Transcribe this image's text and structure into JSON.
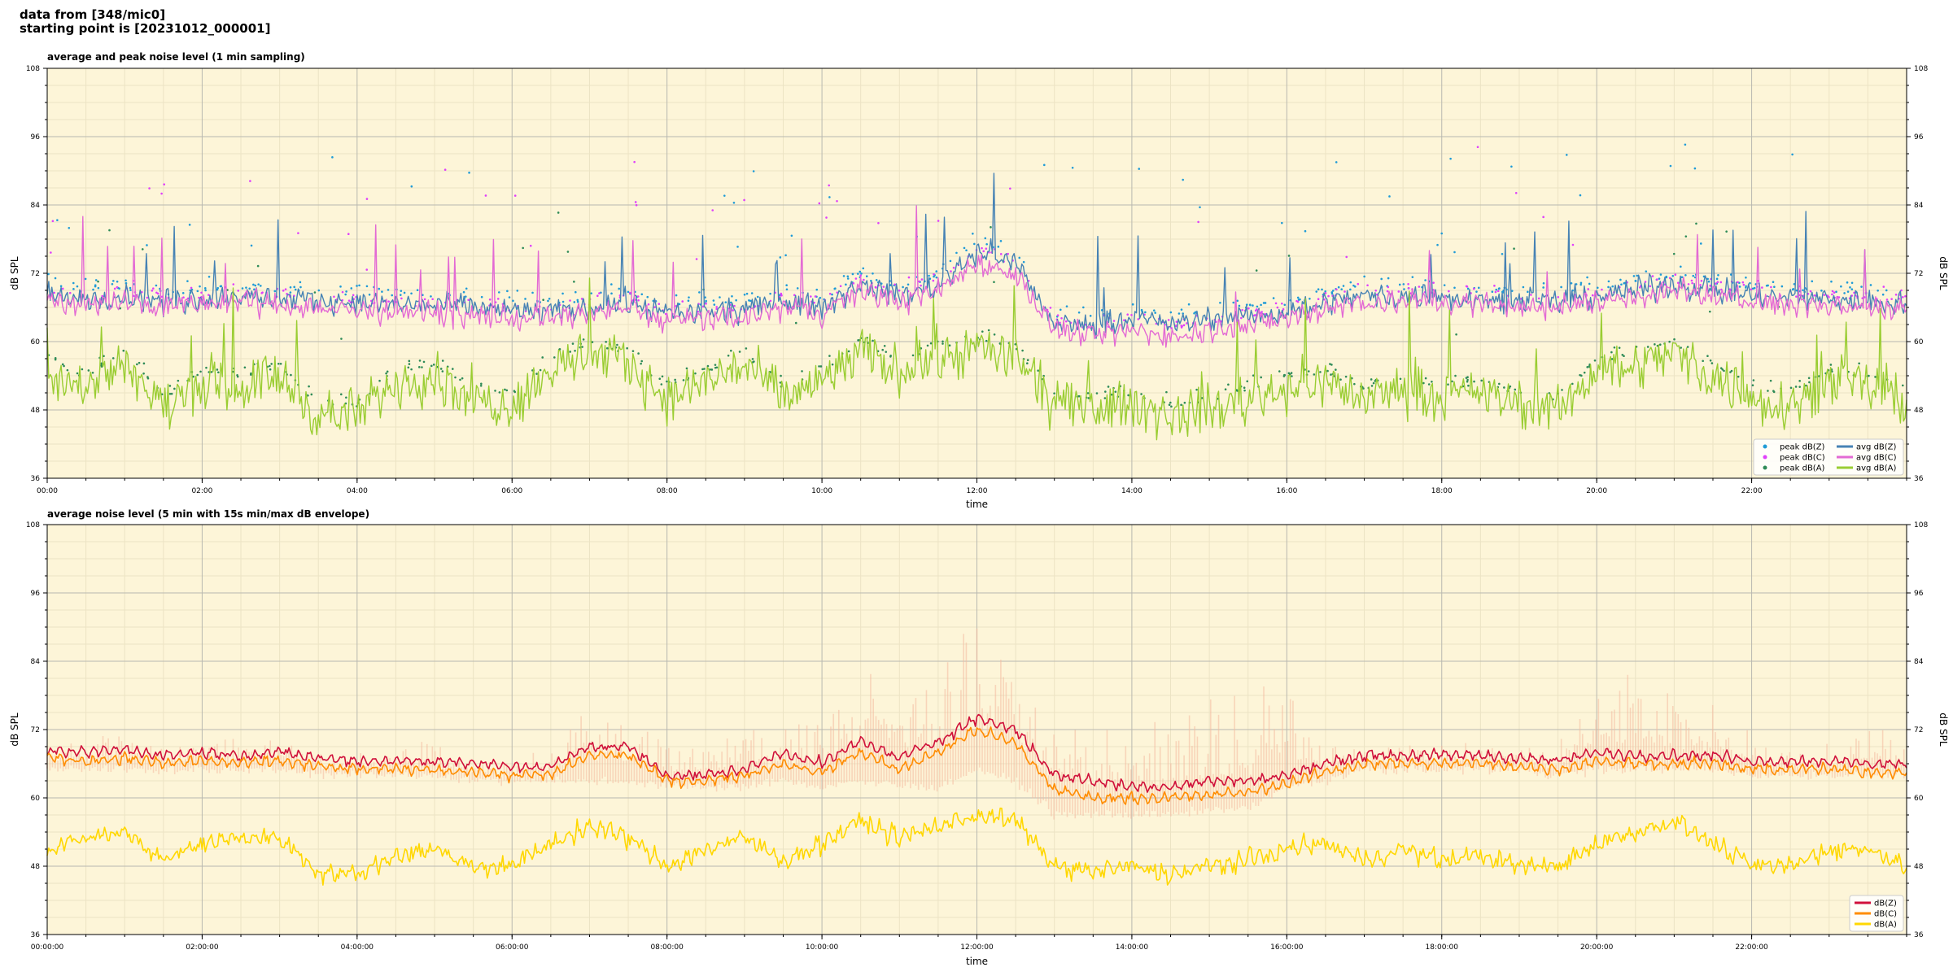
{
  "header": {
    "line1": "data from [348/mic0]",
    "line2": "starting point is [20231012_000001]"
  },
  "chart_data": [
    {
      "type": "line",
      "title": "average and peak noise level (1 min sampling)",
      "xlabel": "time",
      "ylabel": "dB SPL",
      "ylim": [
        36,
        108
      ],
      "yticks": [
        "36",
        "48",
        "60",
        "72",
        "84",
        "96",
        "108"
      ],
      "xlim_hours": [
        0,
        24
      ],
      "xtick_hours": [
        0,
        2,
        4,
        6,
        8,
        10,
        12,
        14,
        16,
        18,
        20,
        22
      ],
      "xtick_labels": [
        "00:00",
        "02:00",
        "04:00",
        "06:00",
        "08:00",
        "10:00",
        "12:00",
        "14:00",
        "16:00",
        "18:00",
        "20:00",
        "22:00"
      ],
      "grid": true,
      "legend_position": "bottom-right",
      "legend": [
        {
          "label": "peak dB(Z)",
          "kind": "dot",
          "color": "#1f9bd7"
        },
        {
          "label": "peak dB(C)",
          "kind": "dot",
          "color": "#e040fb"
        },
        {
          "label": "peak dB(A)",
          "kind": "dot",
          "color": "#2e8b57"
        },
        {
          "label": "avg dB(Z)",
          "kind": "line",
          "color": "#4682b4"
        },
        {
          "label": "avg dB(C)",
          "kind": "line",
          "color": "#e36ad4"
        },
        {
          "label": "avg dB(A)",
          "kind": "line",
          "color": "#9acd32"
        }
      ],
      "x_hours": [
        0,
        0.5,
        1,
        1.5,
        2,
        2.5,
        3,
        3.5,
        4,
        4.5,
        5,
        5.5,
        6,
        6.5,
        7,
        7.5,
        8,
        8.5,
        9,
        9.5,
        10,
        10.5,
        11,
        11.5,
        12,
        12.5,
        13,
        13.5,
        14,
        14.5,
        15,
        15.5,
        16,
        16.5,
        17,
        17.5,
        18,
        18.5,
        19,
        19.5,
        20,
        20.5,
        21,
        21.5,
        22,
        22.5,
        23,
        23.5,
        24
      ],
      "series": [
        {
          "name": "avg dB(Z)",
          "color": "#4682b4",
          "values": [
            68,
            67.5,
            68,
            67,
            67.5,
            68,
            67.5,
            67,
            67,
            66.5,
            66.5,
            66,
            65.5,
            65,
            66,
            67,
            65,
            65,
            65.5,
            67,
            66,
            70,
            68,
            70,
            76,
            74,
            63,
            63,
            64,
            63,
            64,
            64.5,
            65,
            67,
            68,
            68,
            68,
            67.5,
            67,
            67,
            68,
            69,
            70,
            69,
            68,
            67.5,
            67.5,
            67,
            67
          ]
        },
        {
          "name": "avg dB(C)",
          "color": "#e36ad4",
          "values": [
            67,
            66.5,
            67,
            66,
            66.5,
            67,
            66.5,
            66,
            65.5,
            65,
            65,
            64.5,
            64,
            64,
            65,
            66,
            63.5,
            64,
            64,
            66,
            65,
            69,
            67,
            69,
            74,
            72,
            62,
            61,
            62,
            61,
            62,
            63,
            64,
            66,
            67,
            67,
            67,
            66.5,
            66,
            66,
            67,
            68,
            69,
            68,
            67,
            66.5,
            66.5,
            66,
            66
          ]
        },
        {
          "name": "avg dB(A)",
          "color": "#9acd32",
          "values": [
            55,
            52,
            57,
            48,
            53,
            52,
            54,
            47,
            47,
            53,
            54,
            50,
            49,
            55,
            58,
            56,
            50,
            53,
            56,
            50,
            53,
            58,
            55,
            57,
            59,
            57,
            49,
            48,
            49,
            47,
            48,
            50,
            52,
            53,
            50,
            52,
            50,
            51,
            49,
            48,
            55,
            56,
            58,
            54,
            50,
            49,
            53,
            52,
            50
          ]
        }
      ]
    },
    {
      "type": "line",
      "title": "average noise level (5 min with 15s min/max dB envelope)",
      "xlabel": "time",
      "ylabel": "dB SPL",
      "ylim": [
        36,
        108
      ],
      "yticks": [
        "36",
        "48",
        "60",
        "72",
        "84",
        "96",
        "108"
      ],
      "xlim_hours": [
        0,
        24
      ],
      "xtick_hours": [
        0,
        2,
        4,
        6,
        8,
        10,
        12,
        14,
        16,
        18,
        20,
        22
      ],
      "xtick_labels": [
        "00:00:00",
        "02:00:00",
        "04:00:00",
        "06:00:00",
        "08:00:00",
        "10:00:00",
        "12:00:00",
        "14:00:00",
        "16:00:00",
        "18:00:00",
        "20:00:00",
        "22:00:00"
      ],
      "grid": true,
      "legend_position": "bottom-right",
      "legend": [
        {
          "label": "dB(Z)",
          "kind": "line",
          "color": "#d0103a"
        },
        {
          "label": "dB(C)",
          "kind": "line",
          "color": "#ff8c00"
        },
        {
          "label": "dB(A)",
          "kind": "line",
          "color": "#ffd700"
        }
      ],
      "x_hours": [
        0,
        0.5,
        1,
        1.5,
        2,
        2.5,
        3,
        3.5,
        4,
        4.5,
        5,
        5.5,
        6,
        6.5,
        7,
        7.5,
        8,
        8.5,
        9,
        9.5,
        10,
        10.5,
        11,
        11.5,
        12,
        12.5,
        13,
        13.5,
        14,
        14.5,
        15,
        15.5,
        16,
        16.5,
        17,
        17.5,
        18,
        18.5,
        19,
        19.5,
        20,
        20.5,
        21,
        21.5,
        22,
        22.5,
        23,
        23.5,
        24
      ],
      "envelope": {
        "color": "#f4b9a0",
        "lower": [
          65,
          65,
          65,
          65,
          65,
          65,
          65,
          64,
          64,
          64,
          64,
          63,
          63,
          63,
          63,
          63,
          62,
          62,
          62,
          63,
          62,
          63,
          62,
          62,
          65,
          63,
          57,
          57,
          57,
          57,
          58,
          58,
          62,
          63,
          65,
          65,
          65,
          65,
          65,
          64,
          65,
          65,
          65,
          65,
          64,
          64,
          64,
          64,
          64
        ],
        "upper": [
          72,
          70,
          75,
          70,
          72,
          70,
          74,
          68,
          68,
          70,
          72,
          68,
          68,
          72,
          80,
          76,
          72,
          72,
          76,
          74,
          80,
          90,
          86,
          90,
          94,
          90,
          80,
          76,
          80,
          76,
          82,
          80,
          84,
          72,
          70,
          70,
          70,
          70,
          70,
          70,
          82,
          86,
          80,
          78,
          72,
          70,
          70,
          76,
          70
        ]
      },
      "series": [
        {
          "name": "dB(Z)",
          "color": "#d0103a",
          "values": [
            68,
            68,
            68.5,
            67.5,
            68,
            67.5,
            68,
            67,
            66.5,
            66.5,
            66.5,
            66,
            65.5,
            65.5,
            69,
            69,
            64,
            64,
            65,
            68,
            66,
            70,
            67,
            70,
            74,
            72,
            64,
            63,
            62,
            62,
            63,
            63,
            64,
            66,
            67.5,
            67.5,
            67.5,
            67.5,
            67,
            66.5,
            68,
            67.5,
            67.5,
            67.5,
            66.5,
            66.5,
            66.5,
            66,
            66
          ]
        },
        {
          "name": "dB(C)",
          "color": "#ff8c00",
          "values": [
            67,
            66.5,
            67,
            66,
            66.5,
            66,
            66.5,
            65.5,
            65,
            65,
            65,
            64.5,
            64,
            64,
            67.5,
            67.5,
            63,
            63,
            64,
            66,
            64.5,
            68,
            65,
            68,
            72,
            69.5,
            61.5,
            60,
            60,
            60,
            60.5,
            61,
            62.5,
            64.5,
            66,
            66,
            66,
            66,
            65.5,
            65,
            66.5,
            66,
            66,
            66,
            65,
            65,
            65,
            64.5,
            64.5
          ]
        },
        {
          "name": "dB(A)",
          "color": "#ffd700",
          "values": [
            51,
            53,
            54,
            49,
            52,
            53,
            53,
            47,
            46.5,
            50,
            51,
            48,
            48,
            52,
            55,
            53,
            48,
            51,
            53,
            49,
            52,
            56,
            53,
            55,
            57,
            56,
            48,
            47,
            48,
            46.5,
            48,
            49,
            51,
            52,
            49,
            51,
            49,
            50,
            48,
            48,
            52,
            54,
            56,
            52,
            48,
            48,
            51,
            51,
            48
          ]
        }
      ]
    }
  ]
}
